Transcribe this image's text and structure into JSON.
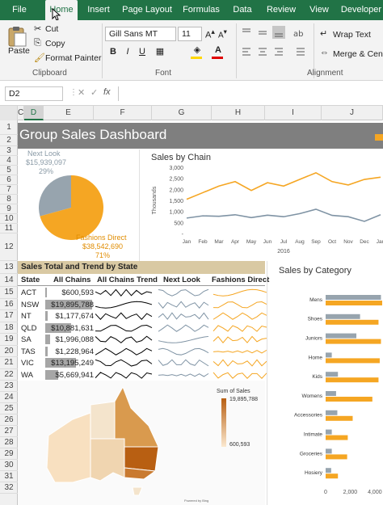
{
  "menu": {
    "tabs": [
      "File",
      "Home",
      "Insert",
      "Page Layout",
      "Formulas",
      "Data",
      "Review",
      "View",
      "Developer"
    ],
    "active": "Home"
  },
  "ribbon": {
    "paste": "Paste",
    "cut": "Cut",
    "copy": "Copy",
    "format_painter": "Format Painter",
    "font_name": "Gill Sans MT",
    "font_size": "11",
    "bold": "B",
    "italic": "I",
    "underline": "U",
    "wrap_text": "Wrap Text",
    "merge": "Merge & Cente",
    "groups": {
      "clipboard": "Clipboard",
      "font": "Font",
      "alignment": "Alignment"
    }
  },
  "formula_bar": {
    "name_box": "D2",
    "fx": "fx",
    "value": ""
  },
  "columns": [
    "C",
    "D",
    "E",
    "F",
    "G",
    "H",
    "I",
    "J"
  ],
  "rows": [
    "1",
    "2",
    "3",
    "4",
    "5",
    "6",
    "7",
    "8",
    "9",
    "10",
    "11",
    "12",
    "13",
    "14",
    "15",
    "16",
    "17",
    "18",
    "19",
    "20",
    "21",
    "22",
    "23",
    "24",
    "25",
    "26",
    "27",
    "28",
    "29",
    "30",
    "31",
    "32"
  ],
  "dashboard": {
    "title": "Group Sales Dashboard",
    "pie": {
      "next_look_label": "Next Look",
      "next_look_value": "$15,939,097",
      "next_look_pct": "29%",
      "fashions_label": "Fashions Direct",
      "fashions_value": "$38,542,690",
      "fashions_pct": "71%"
    },
    "state_table": {
      "title": "Sales Total and Trend by State",
      "headers": [
        "State",
        "All Chains",
        "All Chains Trend",
        "Next Look",
        "Fashions Direct"
      ],
      "rows": [
        {
          "state": "ACT",
          "value": "$600,593",
          "fraction": 0.03
        },
        {
          "state": "NSW",
          "value": "$19,895,788",
          "fraction": 1.0
        },
        {
          "state": "NT",
          "value": "$1,177,674",
          "fraction": 0.06
        },
        {
          "state": "QLD",
          "value": "$10,881,631",
          "fraction": 0.55
        },
        {
          "state": "SA",
          "value": "$1,996,088",
          "fraction": 0.1
        },
        {
          "state": "TAS",
          "value": "$1,228,964",
          "fraction": 0.06
        },
        {
          "state": "VIC",
          "value": "$13,195,249",
          "fraction": 0.66
        },
        {
          "state": "WA",
          "value": "$5,669,941",
          "fraction": 0.28
        }
      ]
    },
    "map": {
      "legend_title": "Sum of Sales",
      "legend_max": "19,895,788",
      "legend_min": "600,593",
      "credit": "Powered by Bing"
    },
    "colors": {
      "orange": "#f5a623",
      "gray": "#97a4ae",
      "title_bar": "#7f7f7f",
      "table_header": "#d9c9a3"
    }
  },
  "chart_data": [
    {
      "type": "pie",
      "title": "",
      "labels": [
        "Next Look",
        "Fashions Direct"
      ],
      "values": [
        15939097,
        38542690
      ],
      "colors": [
        "#97a4ae",
        "#f5a623"
      ]
    },
    {
      "type": "line",
      "title": "Sales by Chain",
      "ylabel": "Thousands",
      "xlabel": "2016",
      "categories": [
        "Jan",
        "Feb",
        "Mar",
        "Apr",
        "May",
        "Jun",
        "Jul",
        "Aug",
        "Sep",
        "Oct",
        "Nov",
        "Dec",
        "Jan"
      ],
      "yticks": [
        "-",
        "500",
        "1,000",
        "1,500",
        "2,000",
        "2,500",
        "3,000"
      ],
      "ylim": [
        0,
        3000
      ],
      "series": [
        {
          "values": [
            1550,
            1850,
            2150,
            2350,
            1950,
            2300,
            2150,
            2450,
            2750,
            2350,
            2200,
            2450,
            2550
          ],
          "color": "#f5a623"
        },
        {
          "values": [
            700,
            800,
            780,
            850,
            720,
            830,
            760,
            900,
            1100,
            820,
            760,
            550,
            850
          ],
          "color": "#7f93a4"
        }
      ]
    },
    {
      "type": "bar",
      "title": "Sales by Category",
      "categories": [
        "Mens",
        "Shoes",
        "Juniors",
        "Home",
        "Kids",
        "Womens",
        "Accessories",
        "Intimate",
        "Groceries",
        "Hosiery"
      ],
      "xticks": [
        "0",
        "2,000",
        "4,000"
      ],
      "xlim": [
        0,
        4600
      ],
      "series": [
        {
          "values": [
            4500,
            2800,
            2500,
            500,
            1000,
            850,
            950,
            500,
            500,
            450
          ],
          "color": "#97a4ae"
        },
        {
          "values": [
            4600,
            4300,
            4500,
            4400,
            4300,
            3800,
            2200,
            1800,
            1750,
            1000
          ],
          "color": "#f5a623"
        }
      ]
    }
  ]
}
